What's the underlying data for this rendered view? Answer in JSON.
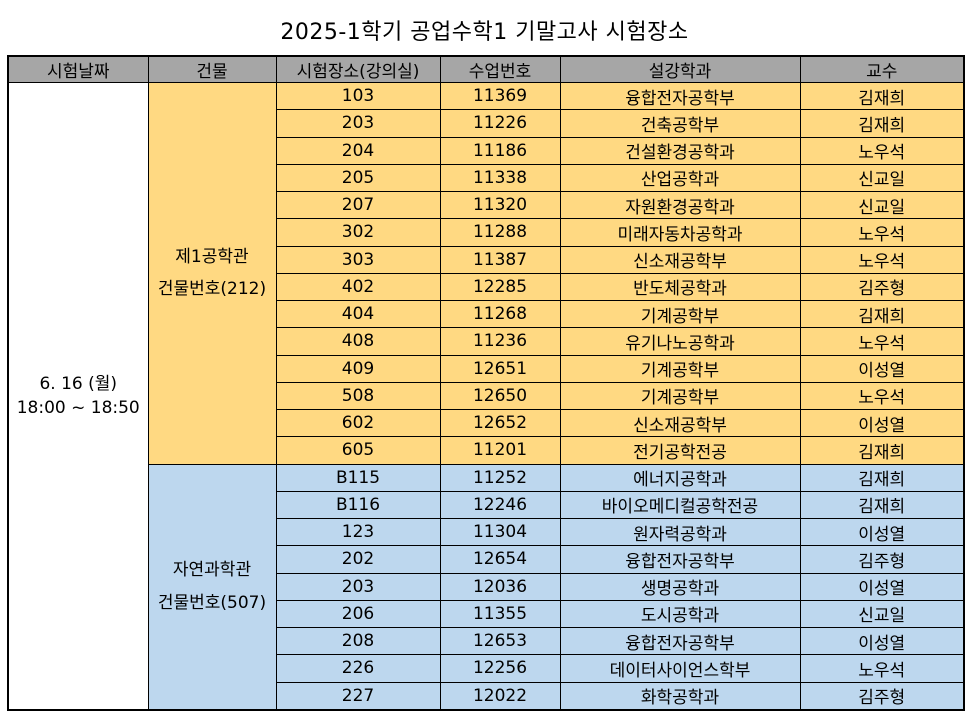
{
  "title": "2025-1학기  공업수학1 기말고사 시험장소",
  "headers": [
    "시험날짜",
    "건물",
    "시험장소(강의실)",
    "수업번호",
    "설강학과",
    "교수"
  ],
  "date": {
    "line1": "6. 16 (월)",
    "line2": "18:00 ~ 18:50"
  },
  "groups": [
    {
      "building": "제1공학관",
      "building_no": "건물번호(212)",
      "color": "#ffd982",
      "rows": [
        [
          "103",
          "11369",
          "융합전자공학부",
          "김재희"
        ],
        [
          "203",
          "11226",
          "건축공학부",
          "김재희"
        ],
        [
          "204",
          "11186",
          "건설환경공학과",
          "노우석"
        ],
        [
          "205",
          "11338",
          "산업공학과",
          "신교일"
        ],
        [
          "207",
          "11320",
          "자원환경공학과",
          "신교일"
        ],
        [
          "302",
          "11288",
          "미래자동차공학과",
          "노우석"
        ],
        [
          "303",
          "11387",
          "신소재공학부",
          "노우석"
        ],
        [
          "402",
          "12285",
          "반도체공학과",
          "김주형"
        ],
        [
          "404",
          "11268",
          "기계공학부",
          "김재희"
        ],
        [
          "408",
          "11236",
          "유기나노공학과",
          "노우석"
        ],
        [
          "409",
          "12651",
          "기계공학부",
          "이성열"
        ],
        [
          "508",
          "12650",
          "기계공학부",
          "노우석"
        ],
        [
          "602",
          "12652",
          "신소재공학부",
          "이성열"
        ],
        [
          "605",
          "11201",
          "전기공학전공",
          "김재희"
        ]
      ]
    },
    {
      "building": "자연과학관",
      "building_no": "건물번호(507)",
      "color": "#bdd7ee",
      "rows": [
        [
          "B115",
          "11252",
          "에너지공학과",
          "김재희"
        ],
        [
          "B116",
          "12246",
          "바이오메디컬공학전공",
          "김재희"
        ],
        [
          "123",
          "11304",
          "원자력공학과",
          "이성열"
        ],
        [
          "202",
          "12654",
          "융합전자공학부",
          "김주형"
        ],
        [
          "203",
          "12036",
          "생명공학과",
          "이성열"
        ],
        [
          "206",
          "11355",
          "도시공학과",
          "신교일"
        ],
        [
          "208",
          "12653",
          "융합전자공학부",
          "이성열"
        ],
        [
          "226",
          "12256",
          "데이터사이언스학부",
          "노우석"
        ],
        [
          "227",
          "12022",
          "화학공학과",
          "김주형"
        ]
      ]
    }
  ]
}
